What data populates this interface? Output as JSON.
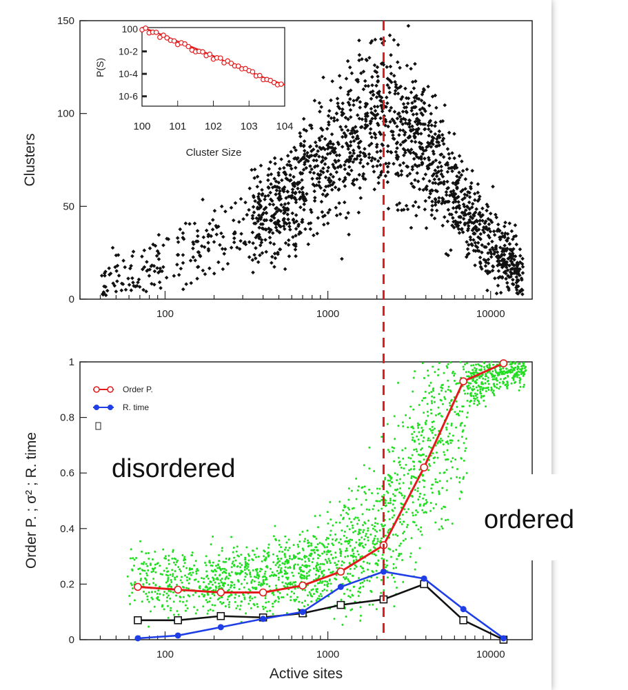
{
  "chart_data": [
    {
      "type": "scatter",
      "panel": "top",
      "ylabel": "Clusters",
      "xscale": "log",
      "xlim": [
        30,
        18000
      ],
      "ylim": [
        0,
        150
      ],
      "x_ticks": [
        "100",
        "1000",
        "10000"
      ],
      "y_ticks": [
        "0",
        "50",
        "100",
        "150"
      ],
      "series": [
        {
          "style": "black diamond markers",
          "envelope_x": [
            40,
            100,
            200,
            500,
            1000,
            1500,
            2100,
            3000,
            5000,
            8000,
            16000
          ],
          "envelope_y_center": [
            8,
            18,
            30,
            50,
            75,
            90,
            100,
            95,
            70,
            40,
            10
          ]
        }
      ],
      "inset": {
        "type": "line",
        "xlabel": "Cluster Size",
        "ylabel": "P(S)",
        "xscale": "log",
        "yscale": "log",
        "x_ticks": [
          "10^0",
          "10^1",
          "10^2",
          "10^3",
          "10^4"
        ],
        "y_ticks": [
          "10^0",
          "10^-2",
          "10^-4",
          "10^-6"
        ],
        "series": [
          {
            "style": "red open circles with line",
            "x": [
              1,
              2,
              4,
              10,
              30,
              100,
              300,
              1000,
              3000,
              10000
            ],
            "y": [
              1,
              0.5,
              0.2,
              0.06,
              0.015,
              0.003,
              0.0006,
              0.00012,
              3e-05,
              8e-06
            ]
          }
        ]
      }
    },
    {
      "type": "line",
      "panel": "bottom",
      "xlabel": "Active sites",
      "ylabel": "Order P. ; σ² ; R. time",
      "xscale": "log",
      "xlim": [
        30,
        18000
      ],
      "ylim": [
        0,
        1
      ],
      "x_ticks": [
        "100",
        "1000",
        "10000"
      ],
      "y_ticks": [
        "0",
        "0.2",
        "0.4",
        "0.6",
        "0.8",
        "1"
      ],
      "series": [
        {
          "name": "Order P.",
          "color": "#e31a1c",
          "marker": "open circle",
          "x": [
            68,
            120,
            220,
            400,
            700,
            1200,
            2200,
            3900,
            6800,
            12000
          ],
          "y": [
            0.19,
            0.18,
            0.17,
            0.17,
            0.195,
            0.245,
            0.34,
            0.62,
            0.93,
            0.995
          ]
        },
        {
          "name": "R. time",
          "color": "#1f3ee6",
          "marker": "filled circle",
          "x": [
            68,
            120,
            220,
            400,
            700,
            1200,
            2200,
            3900,
            6800,
            12000
          ],
          "y": [
            0.005,
            0.015,
            0.045,
            0.075,
            0.1,
            0.19,
            0.245,
            0.22,
            0.11,
            0.005
          ]
        },
        {
          "marker": "open square",
          "color": "#111111",
          "x": [
            68,
            120,
            220,
            400,
            700,
            1200,
            2200,
            3900,
            6800,
            12000
          ],
          "y": [
            0.07,
            0.07,
            0.085,
            0.08,
            0.095,
            0.125,
            0.145,
            0.2,
            0.07,
            0.0
          ]
        },
        {
          "marker": "green dots",
          "color": "#22dd22",
          "envelope_x": [
            60,
            100,
            300,
            1000,
            2000,
            3000,
            5000,
            8000,
            15000
          ],
          "envelope_y_center": [
            0.22,
            0.2,
            0.22,
            0.27,
            0.37,
            0.55,
            0.8,
            0.93,
            0.99
          ]
        }
      ],
      "annotations": [
        "disordered",
        "ordered"
      ],
      "marker_line_x": 2200
    }
  ],
  "colors": {
    "red": "#e31a1c",
    "blue": "#1f3ee6",
    "green": "#22dd22",
    "black": "#111111"
  }
}
